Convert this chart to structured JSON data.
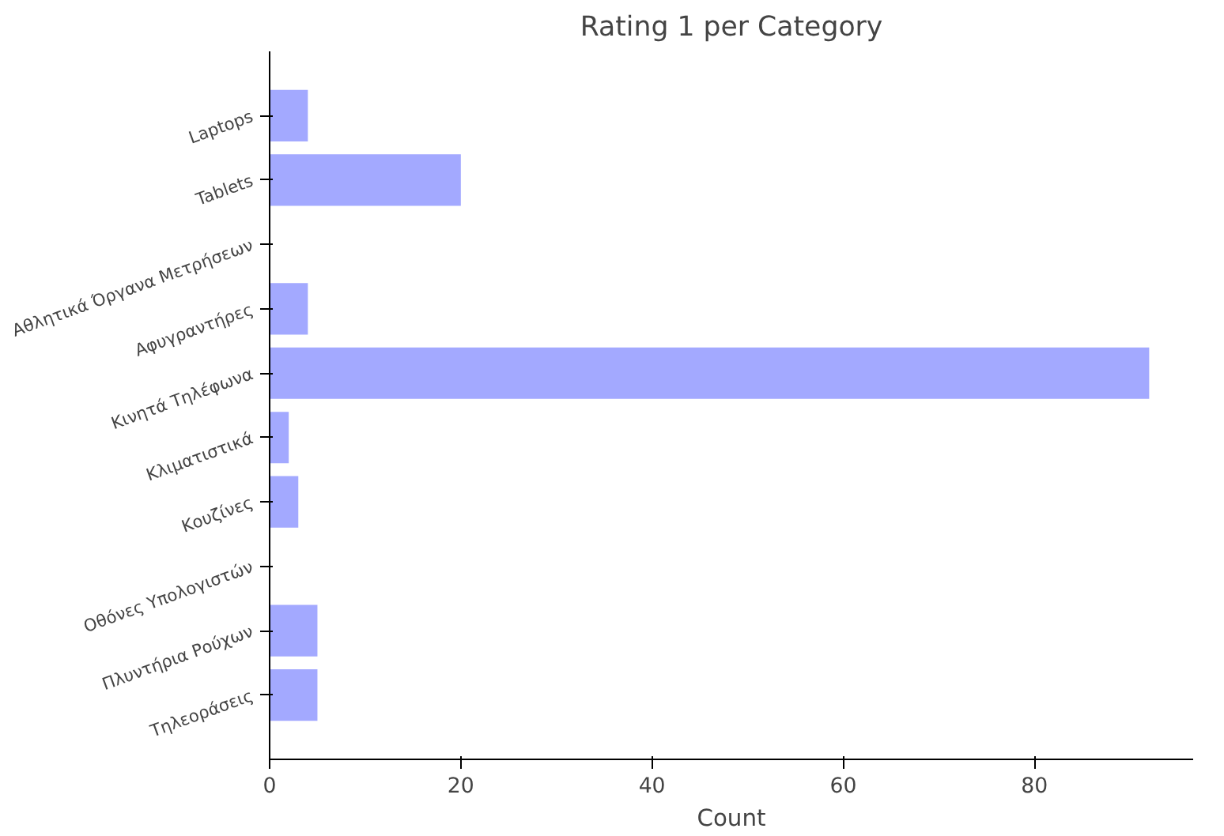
{
  "chart_data": {
    "type": "bar",
    "orientation": "horizontal",
    "title": "Rating 1 per Category",
    "xlabel": "Count",
    "categories": [
      "Laptops",
      "Tablets",
      "Αθλητικά Όργανα Μετρήσεων",
      "Αφυγραντήρες",
      "Κινητά Τηλέφωνα",
      "Κλιματιστικά",
      "Κουζίνες",
      "Οθόνες Υπολογιστών",
      "Πλυντήρια Ρούχων",
      "Τηλεοράσεις"
    ],
    "values": [
      4,
      20,
      0,
      4,
      92,
      2,
      3,
      0,
      5,
      5
    ],
    "color": "#a3a9ff",
    "xlim": [
      0,
      96.6
    ],
    "xticks": [
      0,
      20,
      40,
      60,
      80
    ],
    "grid": false
  }
}
